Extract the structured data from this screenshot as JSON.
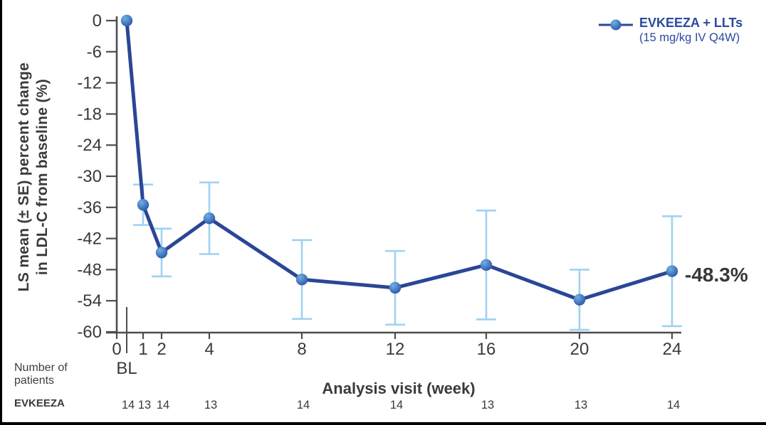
{
  "page": {
    "background": "#ffffff",
    "frame_color": "#000000"
  },
  "legend": {
    "series_label": "EVKEEZA + LLTs",
    "series_sublabel": "(15 mg/kg IV Q4W)",
    "text_color": "#2b4a9e"
  },
  "annotation": {
    "final_value_label": "-48.3%",
    "color": "#383838"
  },
  "axes": {
    "y_title_line1": "LS mean (± SE) percent change",
    "y_title_line2": "in LDL-C from baseline (%)",
    "x_title": "Analysis visit (week)",
    "baseline_label": "BL"
  },
  "patients_table": {
    "header_line1": "Number of",
    "header_line2": "patients",
    "series_name": "EVKEEZA",
    "counts": [
      "14",
      "13",
      "14",
      "13",
      "14",
      "14",
      "13",
      "13",
      "14"
    ]
  },
  "chart_data": {
    "type": "line",
    "title": "",
    "xlabel": "Analysis visit (week)",
    "ylabel": "LS mean (± SE) percent change in LDL-C from baseline (%)",
    "x_weeks": [
      0,
      1,
      2,
      4,
      8,
      12,
      16,
      20,
      24
    ],
    "x_tick_labels": [
      "0",
      "1",
      "2",
      "4",
      "8",
      "12",
      "16",
      "20",
      "24"
    ],
    "baseline_tick_sublabel": "BL",
    "series": [
      {
        "name": "EVKEEZA + LLTs (15 mg/kg IV Q4W)",
        "values": [
          0,
          -35.5,
          -44.7,
          -38.1,
          -49.9,
          -51.5,
          -47.1,
          -53.8,
          -48.3
        ],
        "se": [
          null,
          3.9,
          4.6,
          6.9,
          7.6,
          7.1,
          10.5,
          5.8,
          10.6
        ]
      }
    ],
    "ylim": [
      -60,
      0
    ],
    "ytick_step": 6,
    "ytick_labels": [
      "0",
      "-6",
      "-12",
      "-18",
      "-24",
      "-30",
      "-36",
      "-42",
      "-48",
      "-54",
      "-60"
    ],
    "grid": false,
    "legend_position": "top-right",
    "final_annotation": "-48.3%",
    "number_of_patients": [
      14,
      13,
      14,
      13,
      14,
      14,
      13,
      13,
      14
    ],
    "colors": {
      "line": "#2a4696",
      "marker_light": "#6fb0e4",
      "marker_dark": "#2a52a4",
      "error_bar": "#9ed2f0",
      "axis": "#4d4d4d",
      "text": "#3a3a3a"
    }
  }
}
